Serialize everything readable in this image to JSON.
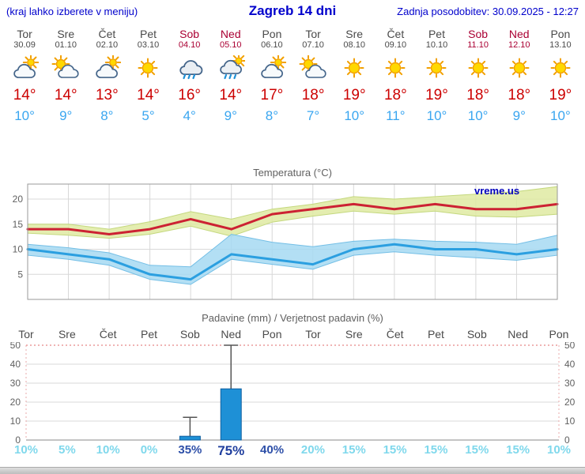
{
  "header": {
    "left_note": "(kraj lahko izberete v meniju)",
    "title": "Zagreb 14 dni",
    "updated": "Zadnja posodobitev: 30.09.2025 - 12:27"
  },
  "colors": {
    "header_blue": "#0000cc",
    "weekday_text": "#4a4a4a",
    "weekend_text": "#aa0033",
    "temp_high": "#cc0000",
    "temp_low": "#3aa6f0",
    "max_line": "#cc2233",
    "max_band": "#dfeaa2",
    "max_band_edge": "#c4d87e",
    "min_line": "#2b9fe0",
    "min_band": "#a6d9f2",
    "min_band_edge": "#74bfe6",
    "bar_fill": "#1e90d6",
    "bar_edge": "#0f5fa0",
    "prob_low": "#7fd8ec",
    "prob_high": "#2d4fa8"
  },
  "days": [
    {
      "name": "Tor",
      "date": "30.09",
      "weekend": false,
      "icon": "mostly-cloudy",
      "high": "14°",
      "low": "10°",
      "prob": "10%",
      "prob_style": "low"
    },
    {
      "name": "Sre",
      "date": "01.10",
      "weekend": false,
      "icon": "partly-sunny",
      "high": "14°",
      "low": "9°",
      "prob": "5%",
      "prob_style": "low"
    },
    {
      "name": "Čet",
      "date": "02.10",
      "weekend": false,
      "icon": "mostly-cloudy",
      "high": "13°",
      "low": "8°",
      "prob": "10%",
      "prob_style": "low"
    },
    {
      "name": "Pet",
      "date": "03.10",
      "weekend": false,
      "icon": "sunny",
      "high": "14°",
      "low": "5°",
      "prob": "0%",
      "prob_style": "low"
    },
    {
      "name": "Sob",
      "date": "04.10",
      "weekend": true,
      "icon": "rain",
      "high": "16°",
      "low": "4°",
      "prob": "35%",
      "prob_style": "mid"
    },
    {
      "name": "Ned",
      "date": "05.10",
      "weekend": true,
      "icon": "rain-sun",
      "high": "14°",
      "low": "9°",
      "prob": "75%",
      "prob_style": "strong"
    },
    {
      "name": "Pon",
      "date": "06.10",
      "weekend": false,
      "icon": "mostly-cloudy",
      "high": "17°",
      "low": "8°",
      "prob": "40%",
      "prob_style": "mid"
    },
    {
      "name": "Tor",
      "date": "07.10",
      "weekend": false,
      "icon": "partly-sunny",
      "high": "18°",
      "low": "7°",
      "prob": "20%",
      "prob_style": "low"
    },
    {
      "name": "Sre",
      "date": "08.10",
      "weekend": false,
      "icon": "sunny",
      "high": "19°",
      "low": "10°",
      "prob": "15%",
      "prob_style": "low"
    },
    {
      "name": "Čet",
      "date": "09.10",
      "weekend": false,
      "icon": "sunny",
      "high": "18°",
      "low": "11°",
      "prob": "15%",
      "prob_style": "low"
    },
    {
      "name": "Pet",
      "date": "10.10",
      "weekend": false,
      "icon": "sunny",
      "high": "19°",
      "low": "10°",
      "prob": "15%",
      "prob_style": "low"
    },
    {
      "name": "Sob",
      "date": "11.10",
      "weekend": true,
      "icon": "sunny",
      "high": "18°",
      "low": "10°",
      "prob": "15%",
      "prob_style": "low"
    },
    {
      "name": "Ned",
      "date": "12.10",
      "weekend": true,
      "icon": "sunny",
      "high": "18°",
      "low": "9°",
      "prob": "15%",
      "prob_style": "low"
    },
    {
      "name": "Pon",
      "date": "13.10",
      "weekend": false,
      "icon": "sunny",
      "high": "19°",
      "low": "10°",
      "prob": "10%",
      "prob_style": "low"
    }
  ],
  "chart_data": [
    {
      "type": "line",
      "title": "Temperatura (°C)",
      "watermark": "vreme.us",
      "x_labels": [
        "Tor",
        "Sre",
        "Čet",
        "Pet",
        "Sob",
        "Ned",
        "Pon",
        "Tor",
        "Sre",
        "Čet",
        "Pet",
        "Sob",
        "Ned",
        "Pon"
      ],
      "ylim": [
        0,
        23
      ],
      "yticks": [
        5,
        10,
        15,
        20
      ],
      "grid": true,
      "legend_position": "none",
      "series": [
        {
          "name": "t_max",
          "color": "#cc2233",
          "values": [
            14,
            14,
            13,
            14,
            16,
            14,
            17,
            18,
            19,
            18,
            19,
            18,
            18,
            19
          ]
        },
        {
          "name": "t_min",
          "color": "#2b9fe0",
          "values": [
            10,
            9,
            8,
            5,
            4,
            9,
            8,
            7,
            10,
            11,
            10,
            10,
            9,
            10
          ]
        }
      ],
      "bands": [
        {
          "name": "t_max_range",
          "color": "#dfeaa2",
          "edge": "#c4d87e",
          "upper": [
            15,
            15,
            14,
            15.5,
            17.5,
            16,
            18,
            19,
            20.5,
            20,
            20.5,
            21,
            21.5,
            22.5
          ],
          "lower": [
            13.2,
            12.8,
            12.2,
            13,
            14.6,
            12.6,
            15.4,
            16.6,
            17.6,
            17,
            17.6,
            16.6,
            16.4,
            17
          ]
        },
        {
          "name": "t_min_range",
          "color": "#a6d9f2",
          "edge": "#74bfe6",
          "upper": [
            11,
            10.3,
            9.3,
            6.8,
            6.5,
            13,
            11.4,
            10.5,
            11.6,
            12,
            11.6,
            11.4,
            11,
            12.8
          ],
          "lower": [
            8.8,
            8,
            6.8,
            4,
            3,
            8,
            7,
            6,
            8.8,
            9.5,
            8.8,
            8.3,
            7.8,
            8.8
          ]
        }
      ]
    },
    {
      "type": "bar",
      "title": "Padavine (mm) / Verjetnost padavin (%)",
      "categories": [
        "Tor",
        "Sre",
        "Čet",
        "Pet",
        "Sob",
        "Ned",
        "Pon",
        "Tor",
        "Sre",
        "Čet",
        "Pet",
        "Sob",
        "Ned",
        "Pon"
      ],
      "weekend_idx": [
        4,
        5,
        11,
        12
      ],
      "ylim": [
        0,
        52
      ],
      "yticks": [
        0,
        10,
        20,
        30,
        40,
        50
      ],
      "values_mm": [
        0,
        0,
        0,
        0,
        2,
        27,
        0,
        0,
        0,
        0,
        0,
        0,
        0,
        0
      ],
      "whisker_mm": [
        0,
        0,
        0,
        0,
        12,
        50,
        0,
        0,
        0,
        0,
        0,
        0,
        0,
        0
      ],
      "probabilities": [
        "10%",
        "5%",
        "10%",
        "0%",
        "35%",
        "75%",
        "40%",
        "20%",
        "15%",
        "15%",
        "15%",
        "15%",
        "15%",
        "10%"
      ]
    }
  ]
}
